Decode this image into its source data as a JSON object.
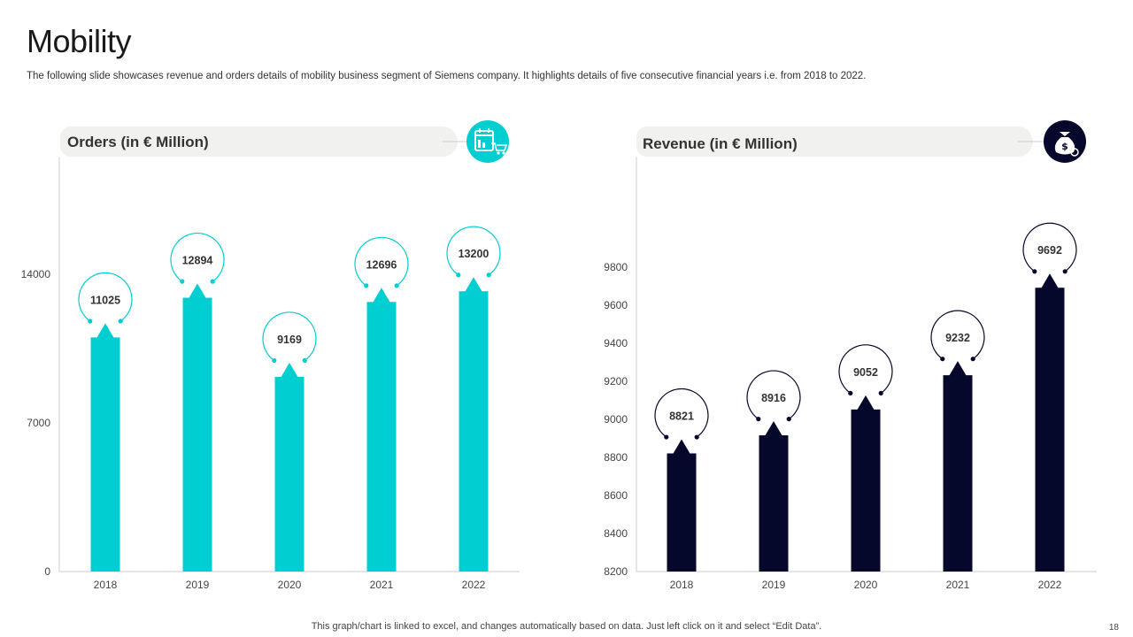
{
  "page": {
    "title": "Mobility",
    "subtitle": "The following slide showcases revenue and orders details of mobility business segment of Siemens company. It highlights details of five consecutive financial years i.e. from 2018 to 2022.",
    "footer": "This graph/chart is linked to excel,  and changes automatically based on data. Just left click on it and select “Edit Data”.",
    "page_number": "18"
  },
  "chart_data": [
    {
      "type": "bar",
      "title": "Orders (in € Million)",
      "categories": [
        "2018",
        "2019",
        "2020",
        "2021",
        "2022"
      ],
      "values": [
        11025,
        12894,
        9169,
        12696,
        13200
      ],
      "ylim": [
        0,
        14000
      ],
      "yticks": [
        0,
        7000,
        14000
      ],
      "color": "#00CED1",
      "icon": "calendar-cart-icon",
      "xlabel": "",
      "ylabel": "",
      "grid": false
    },
    {
      "type": "bar",
      "title": "Revenue (in € Million)",
      "categories": [
        "2018",
        "2019",
        "2020",
        "2021",
        "2022"
      ],
      "values": [
        8821,
        8916,
        9052,
        9232,
        9692
      ],
      "ylim": [
        8200,
        9800
      ],
      "yticks": [
        8200,
        8400,
        8600,
        8800,
        9000,
        9200,
        9400,
        9600,
        9800
      ],
      "color": "#05082A",
      "icon": "money-bag-icon",
      "xlabel": "",
      "ylabel": "",
      "grid": false
    }
  ]
}
